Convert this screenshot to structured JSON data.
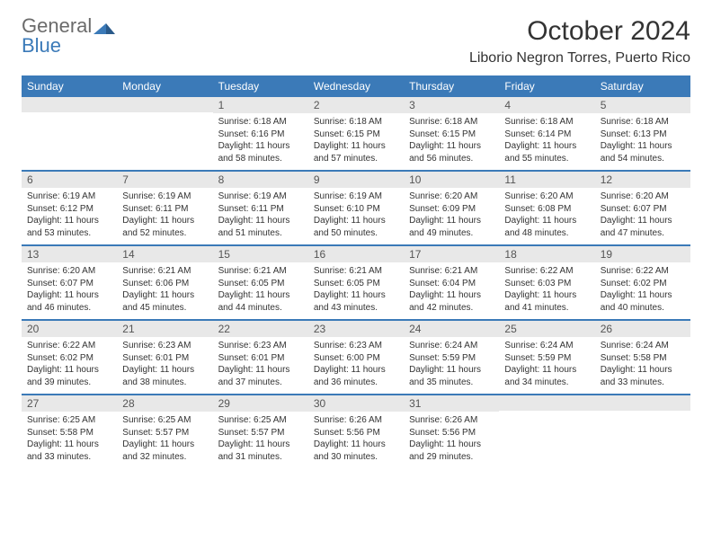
{
  "logo": {
    "line1": "General",
    "line2": "Blue"
  },
  "colors": {
    "brand": "#3b7ab8",
    "text": "#333333",
    "muted": "#6b6b6b",
    "daynum_bg": "#e8e8e8",
    "white": "#ffffff"
  },
  "header": {
    "title": "October 2024",
    "location": "Liborio Negron Torres, Puerto Rico"
  },
  "weekdays": [
    "Sunday",
    "Monday",
    "Tuesday",
    "Wednesday",
    "Thursday",
    "Friday",
    "Saturday"
  ],
  "weeks": [
    [
      {
        "n": "",
        "sunrise": "",
        "sunset": "",
        "daylight": ""
      },
      {
        "n": "",
        "sunrise": "",
        "sunset": "",
        "daylight": ""
      },
      {
        "n": "1",
        "sunrise": "Sunrise: 6:18 AM",
        "sunset": "Sunset: 6:16 PM",
        "daylight": "Daylight: 11 hours and 58 minutes."
      },
      {
        "n": "2",
        "sunrise": "Sunrise: 6:18 AM",
        "sunset": "Sunset: 6:15 PM",
        "daylight": "Daylight: 11 hours and 57 minutes."
      },
      {
        "n": "3",
        "sunrise": "Sunrise: 6:18 AM",
        "sunset": "Sunset: 6:15 PM",
        "daylight": "Daylight: 11 hours and 56 minutes."
      },
      {
        "n": "4",
        "sunrise": "Sunrise: 6:18 AM",
        "sunset": "Sunset: 6:14 PM",
        "daylight": "Daylight: 11 hours and 55 minutes."
      },
      {
        "n": "5",
        "sunrise": "Sunrise: 6:18 AM",
        "sunset": "Sunset: 6:13 PM",
        "daylight": "Daylight: 11 hours and 54 minutes."
      }
    ],
    [
      {
        "n": "6",
        "sunrise": "Sunrise: 6:19 AM",
        "sunset": "Sunset: 6:12 PM",
        "daylight": "Daylight: 11 hours and 53 minutes."
      },
      {
        "n": "7",
        "sunrise": "Sunrise: 6:19 AM",
        "sunset": "Sunset: 6:11 PM",
        "daylight": "Daylight: 11 hours and 52 minutes."
      },
      {
        "n": "8",
        "sunrise": "Sunrise: 6:19 AM",
        "sunset": "Sunset: 6:11 PM",
        "daylight": "Daylight: 11 hours and 51 minutes."
      },
      {
        "n": "9",
        "sunrise": "Sunrise: 6:19 AM",
        "sunset": "Sunset: 6:10 PM",
        "daylight": "Daylight: 11 hours and 50 minutes."
      },
      {
        "n": "10",
        "sunrise": "Sunrise: 6:20 AM",
        "sunset": "Sunset: 6:09 PM",
        "daylight": "Daylight: 11 hours and 49 minutes."
      },
      {
        "n": "11",
        "sunrise": "Sunrise: 6:20 AM",
        "sunset": "Sunset: 6:08 PM",
        "daylight": "Daylight: 11 hours and 48 minutes."
      },
      {
        "n": "12",
        "sunrise": "Sunrise: 6:20 AM",
        "sunset": "Sunset: 6:07 PM",
        "daylight": "Daylight: 11 hours and 47 minutes."
      }
    ],
    [
      {
        "n": "13",
        "sunrise": "Sunrise: 6:20 AM",
        "sunset": "Sunset: 6:07 PM",
        "daylight": "Daylight: 11 hours and 46 minutes."
      },
      {
        "n": "14",
        "sunrise": "Sunrise: 6:21 AM",
        "sunset": "Sunset: 6:06 PM",
        "daylight": "Daylight: 11 hours and 45 minutes."
      },
      {
        "n": "15",
        "sunrise": "Sunrise: 6:21 AM",
        "sunset": "Sunset: 6:05 PM",
        "daylight": "Daylight: 11 hours and 44 minutes."
      },
      {
        "n": "16",
        "sunrise": "Sunrise: 6:21 AM",
        "sunset": "Sunset: 6:05 PM",
        "daylight": "Daylight: 11 hours and 43 minutes."
      },
      {
        "n": "17",
        "sunrise": "Sunrise: 6:21 AM",
        "sunset": "Sunset: 6:04 PM",
        "daylight": "Daylight: 11 hours and 42 minutes."
      },
      {
        "n": "18",
        "sunrise": "Sunrise: 6:22 AM",
        "sunset": "Sunset: 6:03 PM",
        "daylight": "Daylight: 11 hours and 41 minutes."
      },
      {
        "n": "19",
        "sunrise": "Sunrise: 6:22 AM",
        "sunset": "Sunset: 6:02 PM",
        "daylight": "Daylight: 11 hours and 40 minutes."
      }
    ],
    [
      {
        "n": "20",
        "sunrise": "Sunrise: 6:22 AM",
        "sunset": "Sunset: 6:02 PM",
        "daylight": "Daylight: 11 hours and 39 minutes."
      },
      {
        "n": "21",
        "sunrise": "Sunrise: 6:23 AM",
        "sunset": "Sunset: 6:01 PM",
        "daylight": "Daylight: 11 hours and 38 minutes."
      },
      {
        "n": "22",
        "sunrise": "Sunrise: 6:23 AM",
        "sunset": "Sunset: 6:01 PM",
        "daylight": "Daylight: 11 hours and 37 minutes."
      },
      {
        "n": "23",
        "sunrise": "Sunrise: 6:23 AM",
        "sunset": "Sunset: 6:00 PM",
        "daylight": "Daylight: 11 hours and 36 minutes."
      },
      {
        "n": "24",
        "sunrise": "Sunrise: 6:24 AM",
        "sunset": "Sunset: 5:59 PM",
        "daylight": "Daylight: 11 hours and 35 minutes."
      },
      {
        "n": "25",
        "sunrise": "Sunrise: 6:24 AM",
        "sunset": "Sunset: 5:59 PM",
        "daylight": "Daylight: 11 hours and 34 minutes."
      },
      {
        "n": "26",
        "sunrise": "Sunrise: 6:24 AM",
        "sunset": "Sunset: 5:58 PM",
        "daylight": "Daylight: 11 hours and 33 minutes."
      }
    ],
    [
      {
        "n": "27",
        "sunrise": "Sunrise: 6:25 AM",
        "sunset": "Sunset: 5:58 PM",
        "daylight": "Daylight: 11 hours and 33 minutes."
      },
      {
        "n": "28",
        "sunrise": "Sunrise: 6:25 AM",
        "sunset": "Sunset: 5:57 PM",
        "daylight": "Daylight: 11 hours and 32 minutes."
      },
      {
        "n": "29",
        "sunrise": "Sunrise: 6:25 AM",
        "sunset": "Sunset: 5:57 PM",
        "daylight": "Daylight: 11 hours and 31 minutes."
      },
      {
        "n": "30",
        "sunrise": "Sunrise: 6:26 AM",
        "sunset": "Sunset: 5:56 PM",
        "daylight": "Daylight: 11 hours and 30 minutes."
      },
      {
        "n": "31",
        "sunrise": "Sunrise: 6:26 AM",
        "sunset": "Sunset: 5:56 PM",
        "daylight": "Daylight: 11 hours and 29 minutes."
      },
      {
        "n": "",
        "sunrise": "",
        "sunset": "",
        "daylight": ""
      },
      {
        "n": "",
        "sunrise": "",
        "sunset": "",
        "daylight": ""
      }
    ]
  ]
}
